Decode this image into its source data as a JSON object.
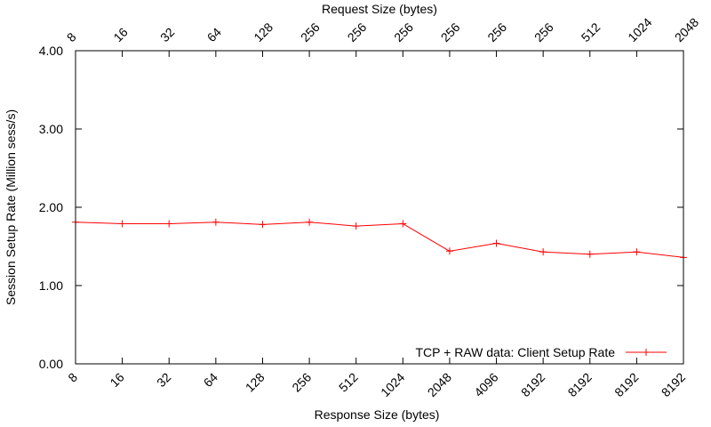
{
  "chart_data": {
    "type": "line",
    "title": "",
    "xlabel": "Response Size (bytes)",
    "x2label": "Request Size (bytes)",
    "ylabel": "Session Setup Rate (Million sess/s)",
    "ylim": [
      0,
      4
    ],
    "yticks": [
      "0.00",
      "1.00",
      "2.00",
      "3.00",
      "4.00"
    ],
    "categories": [
      {
        "request": "8",
        "response": "8"
      },
      {
        "request": "16",
        "response": "16"
      },
      {
        "request": "32",
        "response": "32"
      },
      {
        "request": "64",
        "response": "64"
      },
      {
        "request": "128",
        "response": "128"
      },
      {
        "request": "256",
        "response": "256"
      },
      {
        "request": "256",
        "response": "512"
      },
      {
        "request": "256",
        "response": "1024"
      },
      {
        "request": "256",
        "response": "2048"
      },
      {
        "request": "256",
        "response": "4096"
      },
      {
        "request": "256",
        "response": "8192"
      },
      {
        "request": "512",
        "response": "8192"
      },
      {
        "request": "1024",
        "response": "8192"
      },
      {
        "request": "2048",
        "response": "8192"
      }
    ],
    "series": [
      {
        "name": "TCP + RAW data: Client Setup Rate",
        "color": "#ff0000",
        "values": [
          1.81,
          1.79,
          1.79,
          1.81,
          1.78,
          1.81,
          1.76,
          1.79,
          1.44,
          1.54,
          1.43,
          1.4,
          1.43,
          1.36
        ]
      }
    ],
    "grid": false,
    "legend_position": "bottom-right"
  }
}
